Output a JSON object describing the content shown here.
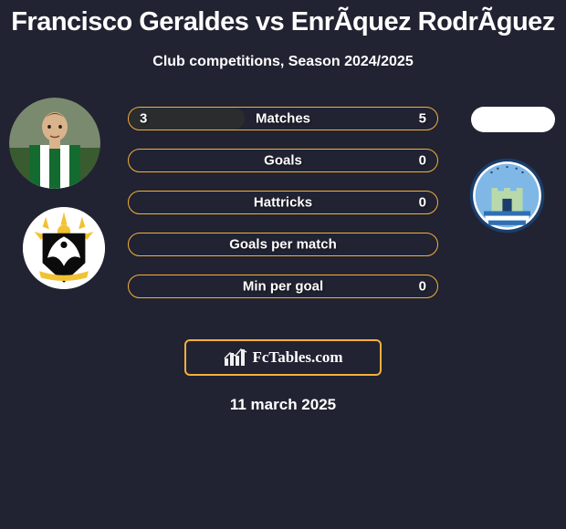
{
  "title": "Francisco Geraldes vs EnrÃ­quez RodrÃ­guez",
  "subtitle": "Club competitions, Season 2024/2025",
  "date": "11 march 2025",
  "brand": "FcTables.com",
  "colors": {
    "background": "#212332",
    "bar_border": "#f4b03a",
    "bar_fill": "#2b2c2e",
    "text": "#ffffff",
    "player_skin": "#d9b38c",
    "player_shirt_green": "#146b2f",
    "player_shirt_white": "#ffffff",
    "club_left_bg": "#ffffff",
    "club_left_bird": "#0b0b0b",
    "club_left_rays": "#f2c233",
    "club_right_sky": "#7fb7e6",
    "club_right_castle": "#b8d9aa",
    "club_right_stripe": "#2f6fb3",
    "club_right_border": "#1b3d6b",
    "brand_icon": "#efefef"
  },
  "bars": [
    {
      "label": "Matches",
      "left": "3",
      "right": "5",
      "fill_pct": 37.5
    },
    {
      "label": "Goals",
      "left": "",
      "right": "0",
      "fill_pct": 0
    },
    {
      "label": "Hattricks",
      "left": "",
      "right": "0",
      "fill_pct": 0
    },
    {
      "label": "Goals per match",
      "left": "",
      "right": "",
      "fill_pct": 0
    },
    {
      "label": "Min per goal",
      "left": "",
      "right": "0",
      "fill_pct": 0
    }
  ]
}
